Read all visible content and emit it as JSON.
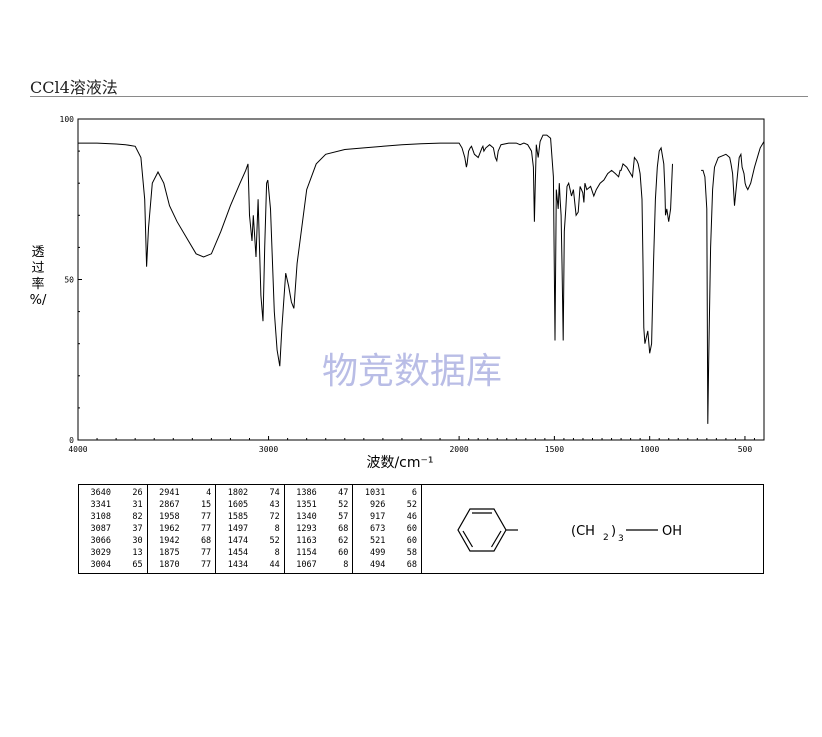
{
  "title": "CCl4溶液法",
  "watermark": "物竞数据库",
  "chart_data": {
    "type": "line",
    "xlabel": "波数/cm⁻¹",
    "ylabel": [
      "透",
      "过",
      "率",
      "%/"
    ],
    "xlim": [
      4000,
      400
    ],
    "ylim": [
      0,
      100
    ],
    "xticks": [
      "4000",
      "3000",
      "2000",
      "1500",
      "1000",
      "500"
    ],
    "xtick_values": [
      4000,
      3000,
      2000,
      1500,
      1000,
      500
    ],
    "yticks": [
      "0",
      "50",
      "100"
    ],
    "ytick_values": [
      0,
      50,
      100
    ],
    "x": [
      4000,
      3900,
      3800,
      3750,
      3700,
      3670,
      3650,
      3640,
      3630,
      3610,
      3580,
      3550,
      3520,
      3480,
      3420,
      3380,
      3341,
      3300,
      3250,
      3200,
      3150,
      3120,
      3108,
      3100,
      3087,
      3080,
      3066,
      3055,
      3040,
      3029,
      3020,
      3010,
      3004,
      2990,
      2970,
      2955,
      2941,
      2930,
      2910,
      2895,
      2880,
      2867,
      2850,
      2800,
      2750,
      2700,
      2600,
      2500,
      2400,
      2300,
      2200,
      2100,
      2000,
      1985,
      1970,
      1962,
      1958,
      1950,
      1942,
      1935,
      1920,
      1900,
      1880,
      1875,
      1870,
      1860,
      1840,
      1820,
      1810,
      1802,
      1795,
      1780,
      1740,
      1700,
      1680,
      1660,
      1640,
      1620,
      1610,
      1605,
      1600,
      1595,
      1590,
      1585,
      1575,
      1560,
      1540,
      1520,
      1505,
      1497,
      1490,
      1480,
      1474,
      1470,
      1465,
      1460,
      1454,
      1448,
      1440,
      1434,
      1425,
      1410,
      1400,
      1386,
      1375,
      1365,
      1351,
      1345,
      1340,
      1330,
      1310,
      1293,
      1280,
      1260,
      1240,
      1220,
      1200,
      1180,
      1163,
      1155,
      1150,
      1140,
      1120,
      1100,
      1090,
      1080,
      1067,
      1060,
      1050,
      1040,
      1035,
      1031,
      1025,
      1010,
      1000,
      990,
      980,
      970,
      960,
      950,
      940,
      926,
      920,
      917,
      910,
      900,
      890,
      880,
      null,
      750,
      740,
      730,
      720,
      710,
      700,
      695,
      690,
      680,
      670,
      660,
      640,
      620,
      600,
      590,
      580,
      573,
      565,
      555,
      540,
      530,
      521,
      515,
      505,
      499,
      494,
      485,
      470,
      450,
      430,
      420,
      400
    ],
    "y": [
      92.5,
      92.5,
      92.2,
      92.0,
      91.5,
      88.0,
      75.0,
      54.0,
      66.0,
      80.0,
      83.5,
      80.0,
      73.0,
      68.0,
      62.0,
      58.0,
      57.0,
      58.0,
      65.0,
      73.0,
      80.0,
      84.0,
      86.0,
      70.0,
      62.0,
      70.0,
      57.0,
      75.0,
      45.0,
      37.0,
      60.0,
      80.0,
      81.0,
      72.0,
      40.0,
      28.0,
      23.0,
      35.0,
      52.0,
      48.0,
      43.0,
      41.0,
      55.0,
      78.0,
      86.0,
      89.0,
      90.5,
      91.0,
      91.5,
      92.0,
      92.3,
      92.5,
      92.5,
      91.0,
      88.0,
      85.0,
      86.0,
      90.0,
      91.0,
      91.5,
      89.0,
      88.0,
      91.0,
      91.5,
      90.0,
      91.0,
      92.0,
      91.0,
      88.0,
      87.0,
      90.0,
      92.0,
      92.5,
      92.5,
      92.0,
      92.5,
      92.0,
      90.0,
      85.0,
      68.0,
      80.0,
      92.0,
      90.0,
      88.0,
      93.0,
      95.0,
      95.0,
      94.0,
      82.0,
      31.0,
      78.0,
      72.0,
      80.0,
      75.0,
      70.0,
      55.0,
      31.0,
      65.0,
      72.0,
      79.0,
      80.0,
      76.0,
      78.0,
      70.0,
      71.0,
      79.0,
      77.0,
      74.0,
      80.0,
      78.0,
      79.0,
      76.0,
      78.0,
      80.0,
      81.0,
      83.0,
      84.0,
      83.0,
      82.0,
      84.0,
      84.0,
      86.0,
      85.0,
      83.0,
      82.0,
      88.0,
      87.0,
      86.0,
      83.0,
      75.0,
      55.0,
      35.0,
      30.0,
      34.0,
      27.0,
      30.0,
      55.0,
      75.0,
      85.0,
      90.0,
      91.0,
      86.0,
      78.0,
      70.0,
      72.0,
      68.0,
      72.0,
      86.0,
      90.0,
      91.0,
      null,
      84.0,
      84.0,
      82.0,
      72.0,
      5.0,
      25.0,
      60.0,
      78.0,
      85.0,
      88.0,
      88.5,
      89.0,
      88.5,
      88.0,
      86.0,
      83.0,
      73.0,
      82.0,
      88.0,
      89.0,
      85.0,
      83.0,
      80.0,
      79.0,
      78.0,
      80.0,
      85.0,
      89.0,
      91.0,
      93.0
    ]
  },
  "peak_table": [
    [
      [
        "3640",
        "26"
      ],
      [
        "3341",
        "31"
      ],
      [
        "3108",
        "82"
      ],
      [
        "3087",
        "37"
      ],
      [
        "3066",
        "30"
      ],
      [
        "3029",
        "13"
      ],
      [
        "3004",
        "65"
      ]
    ],
    [
      [
        "2941",
        "4"
      ],
      [
        "2867",
        "15"
      ],
      [
        "1958",
        "77"
      ],
      [
        "1962",
        "77"
      ],
      [
        "1942",
        "68"
      ],
      [
        "1875",
        "77"
      ],
      [
        "1870",
        "77"
      ]
    ],
    [
      [
        "1802",
        "74"
      ],
      [
        "1605",
        "43"
      ],
      [
        "1585",
        "72"
      ],
      [
        "1497",
        "8"
      ],
      [
        "1474",
        "52"
      ],
      [
        "1454",
        "8"
      ],
      [
        "1434",
        "44"
      ]
    ],
    [
      [
        "1386",
        "47"
      ],
      [
        "1351",
        "52"
      ],
      [
        "1340",
        "57"
      ],
      [
        "1293",
        "68"
      ],
      [
        "1163",
        "62"
      ],
      [
        "1154",
        "60"
      ],
      [
        "1067",
        "8"
      ]
    ],
    [
      [
        "1031",
        "6"
      ],
      [
        "926",
        "52"
      ],
      [
        "917",
        "46"
      ],
      [
        "673",
        "60"
      ],
      [
        "521",
        "60"
      ],
      [
        "499",
        "58"
      ],
      [
        "494",
        "68"
      ]
    ]
  ],
  "structure": {
    "formula_open": "(CH",
    "formula_sub": "2",
    "formula_close": ")",
    "repeat_sub": "3",
    "end_group": "OH"
  }
}
